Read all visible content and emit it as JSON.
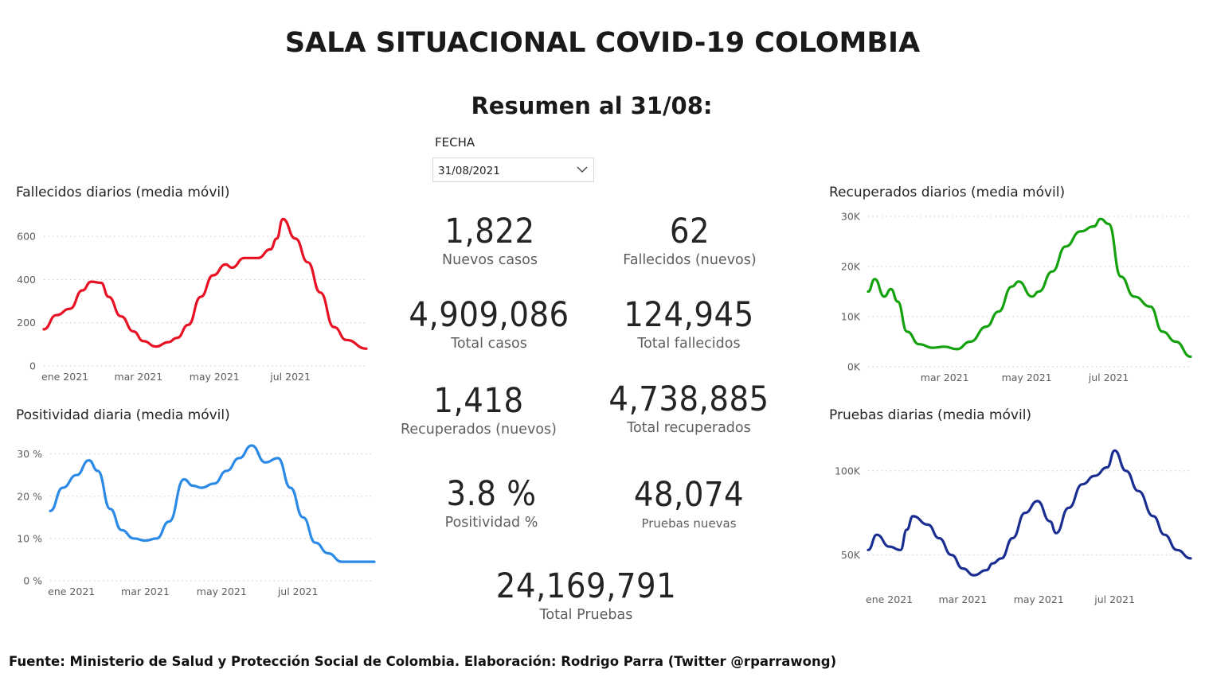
{
  "title": "SALA SITUACIONAL COVID-19 COLOMBIA",
  "subtitle": "Resumen al 31/08:",
  "slicer": {
    "label": "FECHA",
    "value": "31/08/2021",
    "icon": "chevron-down-icon"
  },
  "footer": "Fuente: Ministerio de Salud y Protección Social de Colombia. Elaboración: Rodrigo Parra (Twitter @rparrawong)",
  "kpis": {
    "nuevos_casos": {
      "value": "1,822",
      "label": "Nuevos casos"
    },
    "fallecidos_nuevos": {
      "value": "62",
      "label": "Fallecidos (nuevos)"
    },
    "total_casos": {
      "value": "4,909,086",
      "label": "Total casos"
    },
    "total_fallecidos": {
      "value": "124,945",
      "label": "Total fallecidos"
    },
    "recuperados_nuevos": {
      "value": "1,418",
      "label": "Recuperados (nuevos)"
    },
    "total_recuperados": {
      "value": "4,738,885",
      "label": "Total recuperados"
    },
    "positividad": {
      "value": "3.8 %",
      "label": "Positividad %"
    },
    "pruebas_nuevas": {
      "value": "48,074",
      "label": "Pruebas nuevas"
    },
    "total_pruebas": {
      "value": "24,169,791",
      "label": "Total Pruebas"
    }
  },
  "chart_data": [
    {
      "id": "fallecidos",
      "type": "line",
      "title": "Fallecidos diarios (media móvil)",
      "color": "#e81123",
      "x_start": "2020-12-15",
      "x_end": "2021-08-31",
      "ylim": [
        0,
        700
      ],
      "yticks": [
        0,
        200,
        400,
        600
      ],
      "ytick_labels": [
        "0",
        "200",
        "400",
        "600"
      ],
      "xticks": [
        "2021-01-01",
        "2021-03-01",
        "2021-05-01",
        "2021-07-01"
      ],
      "xtick_labels": [
        "ene 2021",
        "mar 2021",
        "may 2021",
        "jul 2021"
      ],
      "grid": true,
      "series": [
        {
          "x": [
            "2020-12-15",
            "2020-12-25",
            "2021-01-05",
            "2021-01-15",
            "2021-01-22",
            "2021-01-30",
            "2021-02-05",
            "2021-02-15",
            "2021-02-25",
            "2021-03-05",
            "2021-03-15",
            "2021-03-25",
            "2021-04-01",
            "2021-04-10",
            "2021-04-20",
            "2021-04-30",
            "2021-05-10",
            "2021-05-15",
            "2021-05-25",
            "2021-06-05",
            "2021-06-15",
            "2021-06-20",
            "2021-06-25",
            "2021-07-05",
            "2021-07-15",
            "2021-07-25",
            "2021-08-05",
            "2021-08-15",
            "2021-08-31"
          ],
          "y": [
            170,
            235,
            265,
            350,
            390,
            385,
            320,
            230,
            160,
            115,
            90,
            110,
            130,
            190,
            320,
            420,
            470,
            455,
            500,
            500,
            540,
            590,
            680,
            590,
            480,
            340,
            180,
            120,
            80
          ]
        }
      ]
    },
    {
      "id": "positividad",
      "type": "line",
      "title": "Positividad diaria (media móvil)",
      "color": "#2b8ae6",
      "x_start": "2020-12-15",
      "x_end": "2021-08-31",
      "ylim": [
        0,
        32
      ],
      "yticks": [
        0,
        10,
        20,
        30
      ],
      "ytick_labels": [
        "0 %",
        "10 %",
        "20 %",
        "30 %"
      ],
      "xticks": [
        "2021-01-01",
        "2021-03-01",
        "2021-05-01",
        "2021-07-01"
      ],
      "xtick_labels": [
        "ene 2021",
        "mar 2021",
        "may 2021",
        "jul 2021"
      ],
      "grid": true,
      "series": [
        {
          "x": [
            "2020-12-15",
            "2020-12-25",
            "2021-01-05",
            "2021-01-15",
            "2021-01-22",
            "2021-02-01",
            "2021-02-10",
            "2021-02-20",
            "2021-03-01",
            "2021-03-10",
            "2021-03-20",
            "2021-04-01",
            "2021-04-08",
            "2021-04-15",
            "2021-04-25",
            "2021-05-05",
            "2021-05-15",
            "2021-05-25",
            "2021-06-05",
            "2021-06-15",
            "2021-06-25",
            "2021-07-05",
            "2021-07-15",
            "2021-07-25",
            "2021-08-05",
            "2021-08-15",
            "2021-08-31"
          ],
          "y": [
            16.5,
            22,
            25,
            28.5,
            26,
            17,
            12,
            10,
            9.5,
            10,
            14,
            24,
            22.5,
            22,
            23,
            26,
            29,
            32,
            28,
            29,
            22,
            15,
            9,
            6.5,
            4.5,
            4.5,
            4.5
          ]
        }
      ]
    },
    {
      "id": "recuperados",
      "type": "line",
      "title": "Recuperados diarios (media móvil)",
      "color": "#13a10e",
      "x_start": "2021-01-03",
      "x_end": "2021-08-31",
      "ylim": [
        0,
        30000
      ],
      "yticks": [
        0,
        10000,
        20000,
        30000
      ],
      "ytick_labels": [
        "0K",
        "10K",
        "20K",
        "30K"
      ],
      "xticks": [
        "2021-03-01",
        "2021-05-01",
        "2021-07-01"
      ],
      "xtick_labels": [
        "mar 2021",
        "may 2021",
        "jul 2021"
      ],
      "grid": true,
      "series": [
        {
          "x": [
            "2021-01-03",
            "2021-01-08",
            "2021-01-15",
            "2021-01-20",
            "2021-01-25",
            "2021-02-01",
            "2021-02-10",
            "2021-02-20",
            "2021-03-01",
            "2021-03-10",
            "2021-03-20",
            "2021-04-01",
            "2021-04-10",
            "2021-04-20",
            "2021-04-25",
            "2021-05-05",
            "2021-05-10",
            "2021-05-20",
            "2021-05-30",
            "2021-06-10",
            "2021-06-20",
            "2021-06-25",
            "2021-07-01",
            "2021-07-10",
            "2021-07-20",
            "2021-08-01",
            "2021-08-10",
            "2021-08-20",
            "2021-08-31"
          ],
          "y": [
            15000,
            17500,
            14000,
            15500,
            13000,
            7000,
            4500,
            3800,
            4000,
            3500,
            5000,
            8000,
            11000,
            16000,
            17000,
            14000,
            15000,
            19000,
            24000,
            27000,
            28000,
            29500,
            28500,
            18000,
            14000,
            12000,
            7000,
            5000,
            2000
          ]
        }
      ]
    },
    {
      "id": "pruebas",
      "type": "line",
      "title": "Pruebas diarias (media móvil)",
      "color": "#1a2d91",
      "x_start": "2020-12-15",
      "x_end": "2021-08-31",
      "ylim": [
        30000,
        115000
      ],
      "yticks": [
        50000,
        100000
      ],
      "ytick_labels": [
        "50K",
        "100K"
      ],
      "xticks": [
        "2021-01-01",
        "2021-03-01",
        "2021-05-01",
        "2021-07-01"
      ],
      "xtick_labels": [
        "ene 2021",
        "mar 2021",
        "may 2021",
        "jul 2021"
      ],
      "grid": true,
      "series": [
        {
          "x": [
            "2020-12-15",
            "2020-12-22",
            "2021-01-01",
            "2021-01-10",
            "2021-01-15",
            "2021-01-20",
            "2021-02-01",
            "2021-02-10",
            "2021-02-20",
            "2021-03-01",
            "2021-03-10",
            "2021-03-20",
            "2021-03-25",
            "2021-04-01",
            "2021-04-10",
            "2021-04-20",
            "2021-04-30",
            "2021-05-10",
            "2021-05-15",
            "2021-05-25",
            "2021-06-05",
            "2021-06-15",
            "2021-06-25",
            "2021-07-01",
            "2021-07-10",
            "2021-07-20",
            "2021-08-01",
            "2021-08-10",
            "2021-08-20",
            "2021-08-31"
          ],
          "y": [
            53000,
            62000,
            55000,
            53000,
            65000,
            73000,
            68000,
            60000,
            50000,
            42000,
            38000,
            41000,
            45000,
            48000,
            60000,
            75000,
            82000,
            70000,
            63000,
            78000,
            92000,
            97000,
            102000,
            112000,
            100000,
            88000,
            73000,
            62000,
            53000,
            48000
          ]
        }
      ]
    }
  ]
}
